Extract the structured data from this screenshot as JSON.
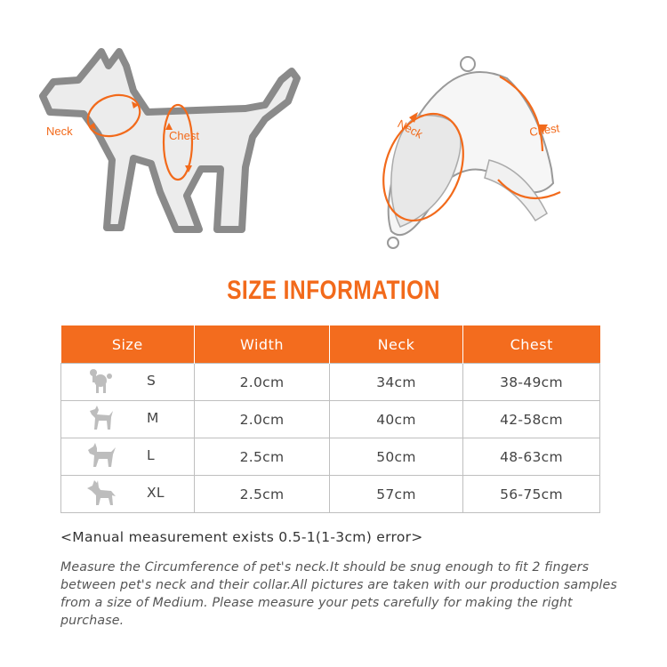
{
  "illustration": {
    "dog_neck_label": "Neck",
    "dog_chest_label": "Chest",
    "harness_neck_label": "Neck",
    "harness_chest_label": "Chest"
  },
  "title": "SIZE INFORMATION",
  "table": {
    "headers": [
      "Size",
      "Width",
      "Neck",
      "Chest"
    ],
    "rows": [
      {
        "size": "S",
        "width": "2.0cm",
        "neck": "34cm",
        "chest": "38-49cm",
        "icon": "poodle-icon"
      },
      {
        "size": "M",
        "width": "2.0cm",
        "neck": "40cm",
        "chest": "42-58cm",
        "icon": "small-dog-icon"
      },
      {
        "size": "L",
        "width": "2.5cm",
        "neck": "50cm",
        "chest": "48-63cm",
        "icon": "bull-terrier-icon"
      },
      {
        "size": "XL",
        "width": "2.5cm",
        "neck": "57cm",
        "chest": "56-75cm",
        "icon": "shepherd-dog-icon"
      }
    ]
  },
  "note": "<Manual measurement exists 0.5-1(1-3cm) error>",
  "description": "Measure the Circumference of pet's neck.It should be snug enough to fit 2 fingers between pet's neck and their collar.All pictures are taken with our production samples from a size of Medium. Please measure your pets carefully for making the right purchase.",
  "colors": {
    "accent": "#f36c1e",
    "outline": "#8a8a8a",
    "border": "#bfbfbf"
  }
}
